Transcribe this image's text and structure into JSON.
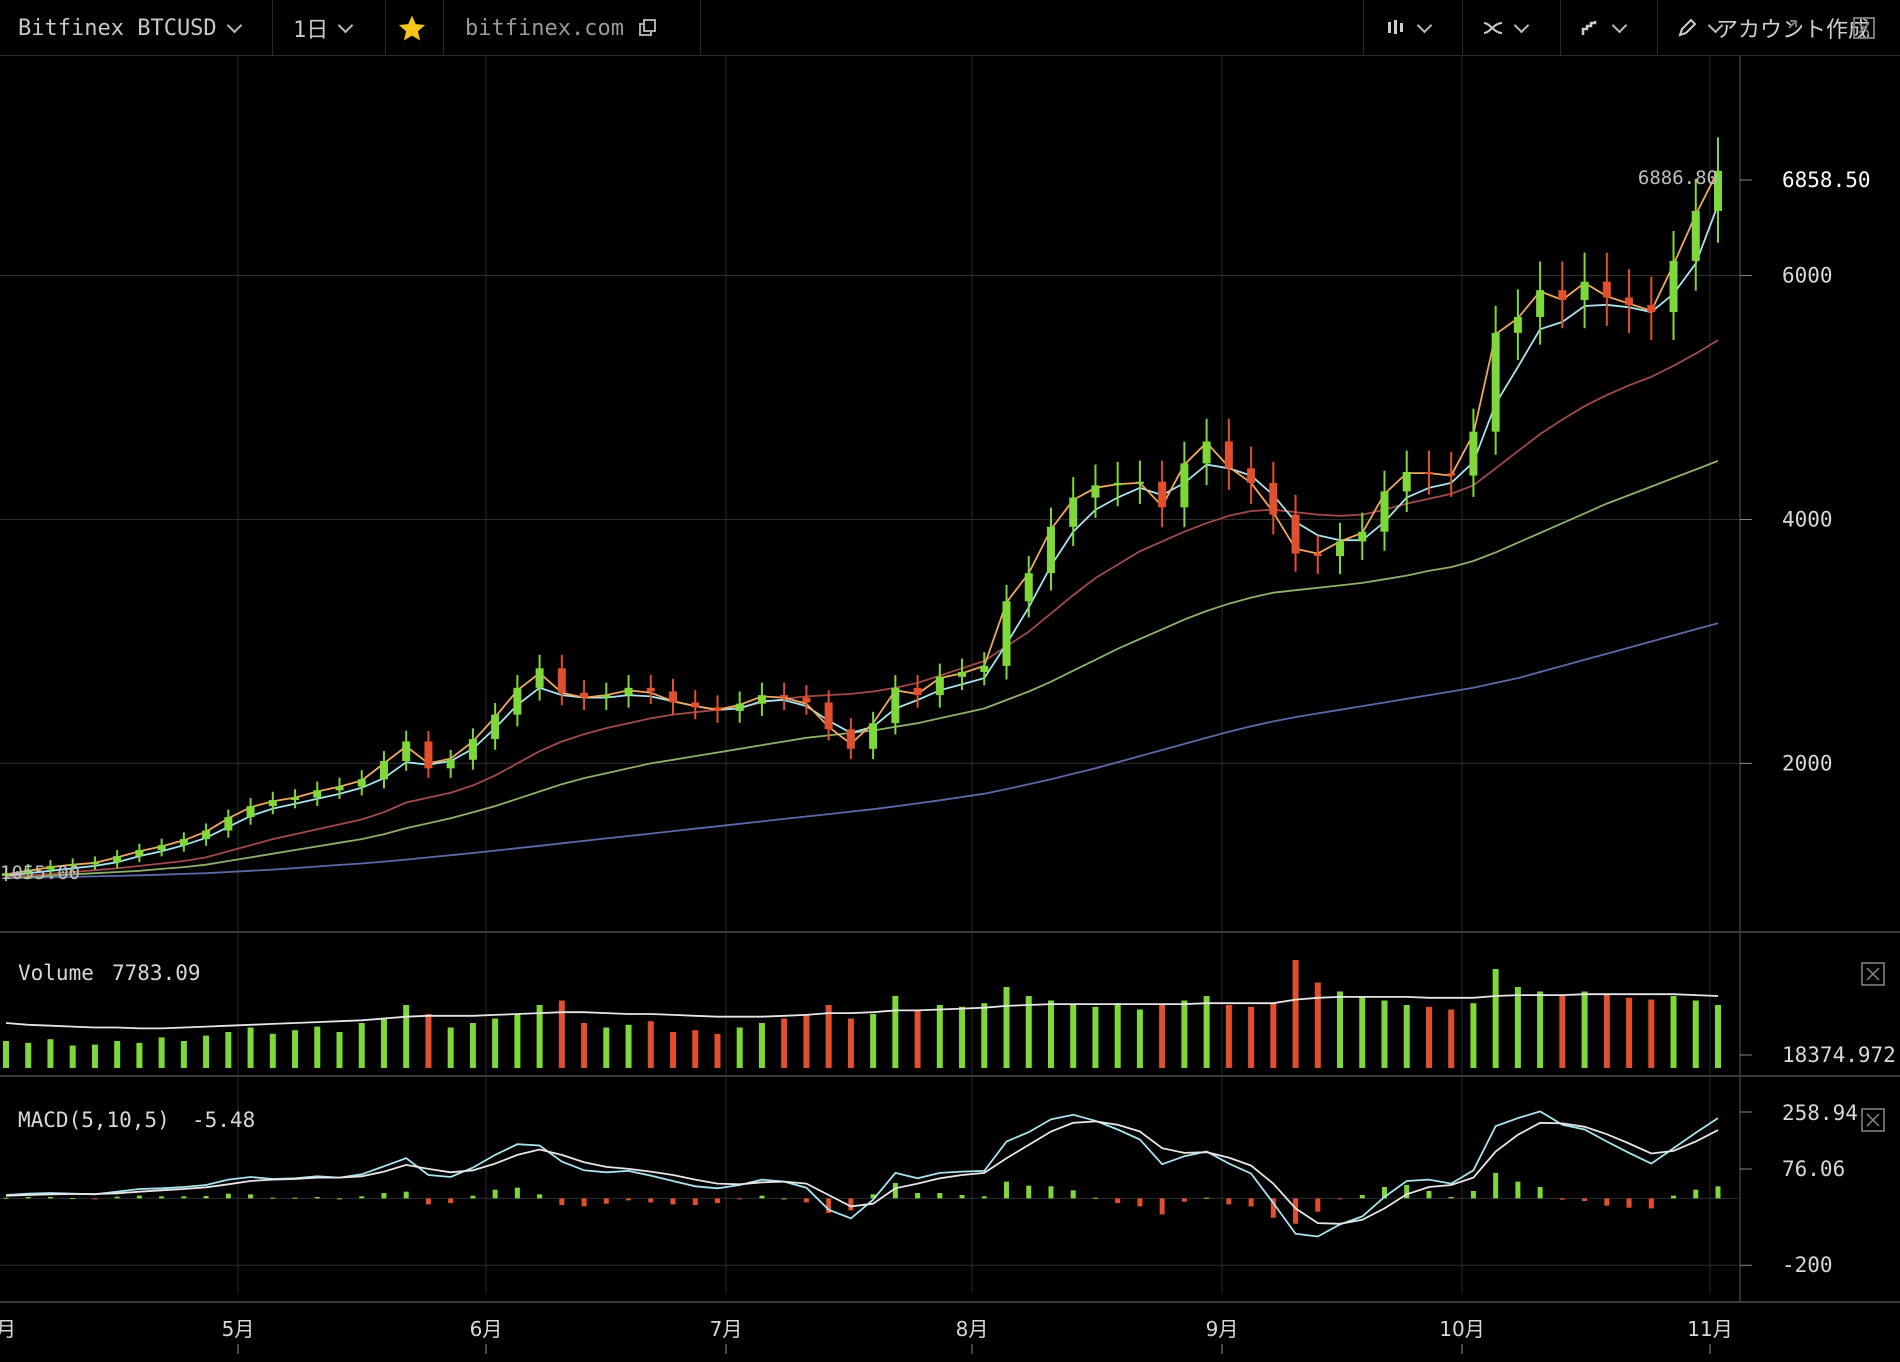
{
  "toolbar": {
    "symbol": "Bitfinex BTCUSD",
    "interval": "1日",
    "source": "bitfinex.com",
    "account": "アカウント作成"
  },
  "chart_data": {
    "type": "candlestick",
    "x_labels": [
      "月",
      "5月",
      "6月",
      "7月",
      "8月",
      "9月",
      "10月",
      "11月"
    ],
    "price": {
      "yticks": [
        2000,
        4000,
        6000
      ],
      "ylim": [
        700,
        7800
      ],
      "last_value_label": "6858.50",
      "high_label": "6886.80",
      "low_label": "1055.00",
      "closes": [
        1100,
        1130,
        1160,
        1175,
        1190,
        1240,
        1290,
        1330,
        1380,
        1450,
        1560,
        1650,
        1700,
        1720,
        1780,
        1810,
        1870,
        2020,
        2180,
        1960,
        2030,
        2200,
        2400,
        2620,
        2780,
        2580,
        2540,
        2560,
        2620,
        2590,
        2500,
        2460,
        2430,
        2490,
        2560,
        2540,
        2500,
        2280,
        2120,
        2330,
        2620,
        2560,
        2710,
        2750,
        2800,
        3330,
        3560,
        3940,
        4180,
        4280,
        4300,
        4310,
        4100,
        4460,
        4640,
        4420,
        4300,
        4040,
        3720,
        3700,
        3820,
        3900,
        4230,
        4390,
        4380,
        4360,
        4720,
        5530,
        5660,
        5880,
        5800,
        5950,
        5820,
        5760,
        5700,
        6120,
        6530,
        6858.5
      ],
      "ma_fast": [
        1090,
        1120,
        1150,
        1170,
        1185,
        1230,
        1280,
        1320,
        1370,
        1440,
        1550,
        1640,
        1690,
        1720,
        1770,
        1810,
        1860,
        2000,
        2140,
        2000,
        2040,
        2180,
        2380,
        2600,
        2740,
        2580,
        2540,
        2560,
        2600,
        2580,
        2510,
        2470,
        2440,
        2480,
        2550,
        2540,
        2490,
        2300,
        2160,
        2330,
        2600,
        2570,
        2700,
        2740,
        2800,
        3320,
        3560,
        3920,
        4160,
        4260,
        4290,
        4300,
        4110,
        4450,
        4630,
        4430,
        4300,
        4060,
        3760,
        3720,
        3820,
        3890,
        4210,
        4380,
        4380,
        4360,
        4700,
        5520,
        5650,
        5870,
        5800,
        5940,
        5830,
        5770,
        5710,
        6090,
        6500,
        6860
      ],
      "ma_mid": [
        1080,
        1100,
        1120,
        1140,
        1160,
        1190,
        1240,
        1280,
        1330,
        1390,
        1480,
        1570,
        1630,
        1670,
        1710,
        1750,
        1800,
        1880,
        2010,
        1990,
        2020,
        2120,
        2290,
        2480,
        2620,
        2560,
        2540,
        2540,
        2560,
        2550,
        2510,
        2470,
        2440,
        2450,
        2510,
        2520,
        2470,
        2350,
        2250,
        2300,
        2450,
        2520,
        2600,
        2650,
        2700,
        2980,
        3280,
        3620,
        3900,
        4080,
        4180,
        4260,
        4200,
        4300,
        4450,
        4420,
        4360,
        4200,
        3980,
        3870,
        3830,
        3830,
        3980,
        4180,
        4260,
        4300,
        4470,
        4950,
        5250,
        5560,
        5620,
        5750,
        5760,
        5740,
        5700,
        5850,
        6100,
        6580
      ],
      "ma_slow1": [
        1070,
        1080,
        1095,
        1110,
        1125,
        1140,
        1160,
        1180,
        1200,
        1230,
        1280,
        1330,
        1380,
        1420,
        1460,
        1500,
        1540,
        1600,
        1680,
        1720,
        1760,
        1820,
        1900,
        2000,
        2100,
        2180,
        2240,
        2290,
        2330,
        2370,
        2400,
        2420,
        2440,
        2460,
        2500,
        2530,
        2550,
        2560,
        2570,
        2590,
        2620,
        2660,
        2720,
        2780,
        2840,
        2960,
        3080,
        3230,
        3380,
        3520,
        3630,
        3740,
        3820,
        3900,
        3970,
        4030,
        4070,
        4080,
        4060,
        4040,
        4030,
        4040,
        4080,
        4130,
        4170,
        4210,
        4280,
        4420,
        4560,
        4700,
        4820,
        4930,
        5020,
        5100,
        5170,
        5260,
        5360,
        5470
      ],
      "ma_slow2": [
        1065,
        1070,
        1080,
        1090,
        1100,
        1110,
        1120,
        1135,
        1150,
        1170,
        1200,
        1230,
        1260,
        1290,
        1320,
        1350,
        1380,
        1420,
        1470,
        1510,
        1550,
        1600,
        1650,
        1710,
        1770,
        1830,
        1880,
        1920,
        1960,
        2000,
        2030,
        2060,
        2090,
        2120,
        2150,
        2180,
        2210,
        2230,
        2250,
        2270,
        2300,
        2330,
        2370,
        2410,
        2450,
        2520,
        2590,
        2670,
        2760,
        2850,
        2940,
        3020,
        3100,
        3180,
        3250,
        3310,
        3360,
        3400,
        3420,
        3440,
        3460,
        3480,
        3510,
        3540,
        3580,
        3610,
        3660,
        3730,
        3810,
        3890,
        3970,
        4050,
        4130,
        4200,
        4270,
        4340,
        4410,
        4480
      ],
      "ma_slow3": [
        1060,
        1063,
        1066,
        1070,
        1074,
        1078,
        1083,
        1088,
        1094,
        1100,
        1110,
        1120,
        1130,
        1142,
        1155,
        1168,
        1180,
        1195,
        1212,
        1230,
        1248,
        1266,
        1285,
        1305,
        1325,
        1345,
        1365,
        1385,
        1405,
        1425,
        1445,
        1465,
        1485,
        1505,
        1525,
        1545,
        1565,
        1585,
        1605,
        1625,
        1648,
        1672,
        1698,
        1725,
        1752,
        1790,
        1830,
        1870,
        1915,
        1960,
        2010,
        2060,
        2110,
        2160,
        2210,
        2260,
        2305,
        2345,
        2380,
        2410,
        2440,
        2470,
        2500,
        2530,
        2560,
        2590,
        2620,
        2660,
        2700,
        2750,
        2800,
        2850,
        2900,
        2950,
        3000,
        3050,
        3100,
        3150
      ]
    },
    "volume": {
      "label": "Volume",
      "value": "7783.09",
      "axis_label": "18374.972",
      "bars": [
        30,
        28,
        32,
        25,
        26,
        30,
        28,
        34,
        30,
        36,
        40,
        45,
        38,
        42,
        46,
        40,
        50,
        55,
        70,
        60,
        45,
        50,
        55,
        60,
        70,
        75,
        50,
        45,
        48,
        52,
        40,
        42,
        38,
        45,
        50,
        55,
        60,
        70,
        55,
        60,
        80,
        65,
        70,
        68,
        72,
        90,
        80,
        75,
        70,
        68,
        72,
        65,
        70,
        75,
        80,
        70,
        68,
        72,
        120,
        95,
        85,
        80,
        75,
        70,
        68,
        65,
        72,
        110,
        90,
        85,
        80,
        85,
        82,
        78,
        76,
        80,
        75,
        70
      ],
      "avg": [
        50,
        48,
        47,
        46,
        45,
        45,
        44,
        44,
        45,
        46,
        47,
        48,
        49,
        50,
        51,
        52,
        53,
        55,
        57,
        58,
        58,
        58,
        59,
        60,
        61,
        62,
        62,
        61,
        60,
        60,
        59,
        58,
        57,
        57,
        57,
        58,
        59,
        61,
        61,
        62,
        64,
        64,
        65,
        66,
        67,
        69,
        70,
        71,
        71,
        71,
        71,
        71,
        71,
        71,
        72,
        72,
        72,
        72,
        76,
        78,
        79,
        79,
        79,
        79,
        78,
        78,
        78,
        80,
        81,
        81,
        81,
        82,
        82,
        82,
        82,
        82,
        81,
        80
      ]
    },
    "macd": {
      "label": "MACD(5,10,5)",
      "value": "-5.48",
      "yticks": [
        -200
      ],
      "axis_label_top": "258.94",
      "axis_label_mid": "76.06",
      "ylim": [
        -280,
        330
      ],
      "macd": [
        10,
        14,
        16,
        14,
        12,
        20,
        28,
        30,
        34,
        40,
        56,
        64,
        58,
        60,
        66,
        62,
        72,
        96,
        120,
        70,
        64,
        92,
        130,
        162,
        158,
        110,
        84,
        78,
        82,
        68,
        52,
        36,
        30,
        40,
        56,
        50,
        32,
        -34,
        -60,
        -4,
        76,
        60,
        76,
        80,
        82,
        170,
        198,
        236,
        250,
        232,
        206,
        176,
        102,
        126,
        140,
        104,
        74,
        -14,
        -106,
        -114,
        -78,
        -54,
        4,
        52,
        56,
        44,
        84,
        216,
        240,
        260,
        220,
        206,
        170,
        136,
        104,
        150,
        196,
        240
      ],
      "signal": [
        8,
        10,
        12,
        13,
        13,
        15,
        20,
        24,
        28,
        33,
        42,
        52,
        56,
        58,
        62,
        62,
        66,
        80,
        100,
        88,
        78,
        84,
        104,
        130,
        146,
        130,
        108,
        94,
        88,
        80,
        70,
        56,
        44,
        42,
        48,
        50,
        44,
        10,
        -24,
        -16,
        30,
        44,
        60,
        70,
        76,
        120,
        160,
        200,
        226,
        230,
        220,
        200,
        150,
        136,
        138,
        122,
        98,
        44,
        -30,
        -74,
        -76,
        -64,
        -30,
        12,
        34,
        40,
        62,
        140,
        190,
        226,
        224,
        214,
        192,
        164,
        134,
        142,
        170,
        204
      ]
    }
  }
}
